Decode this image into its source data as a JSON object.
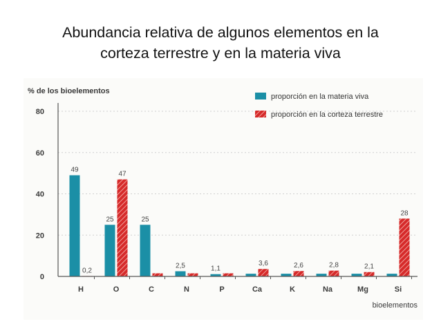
{
  "slide": {
    "title_line1": "Abundancia relativa de algunos elementos en la",
    "title_line2": "corteza terrestre y en la materia viva"
  },
  "chart_data": {
    "type": "bar",
    "title": "",
    "ylabel": "% de los bioelementos",
    "xlabel": "bioelementos",
    "ylim": [
      0,
      80
    ],
    "yticks": [
      0,
      20,
      40,
      60,
      80
    ],
    "grid": true,
    "legend_position": "top-right",
    "categories": [
      "H",
      "O",
      "C",
      "N",
      "P",
      "Ca",
      "K",
      "Na",
      "Mg",
      "Si"
    ],
    "series": [
      {
        "name": "proporción en la materia viva",
        "color": "#1b8fa6",
        "values": [
          49,
          25,
          25,
          2.5,
          1.1,
          1.3,
          1.3,
          1.3,
          1.3,
          1.3
        ],
        "labels": [
          "49",
          "25",
          "25",
          "2,5",
          "1,1",
          "",
          "",
          "",
          "",
          ""
        ]
      },
      {
        "name": "proporción en la corteza terrestre",
        "color": "#d62a2a",
        "values": [
          0.2,
          47,
          1.5,
          1.5,
          1.5,
          3.6,
          2.6,
          2.8,
          2.1,
          28
        ],
        "labels": [
          "0,2",
          "47",
          "",
          "",
          "",
          "3,6",
          "2,6",
          "2,8",
          "2,1",
          "28"
        ]
      }
    ]
  }
}
